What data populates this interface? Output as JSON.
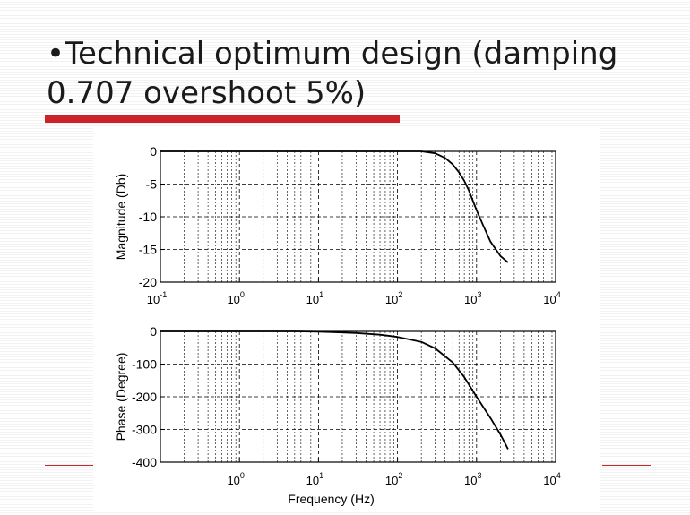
{
  "slide": {
    "title_bullet": "•",
    "title_line1": "Technical optimum design (damping",
    "title_line2": "0.707 overshoot 5%)"
  },
  "colors": {
    "accent": "#cc2229",
    "curve": "#000000",
    "grid": "#000000"
  },
  "chart_data": [
    {
      "type": "line",
      "xscale": "log",
      "xlim": [
        0.1,
        10000
      ],
      "ylim": [
        -20,
        0
      ],
      "xlabel": "",
      "ylabel": "Magnitude (Db)",
      "yticks": [
        0,
        -5,
        -10,
        -15,
        -20
      ],
      "xticks": [
        {
          "mant": "10",
          "exp": "-1"
        },
        {
          "mant": "10",
          "exp": "0"
        },
        {
          "mant": "10",
          "exp": "1"
        },
        {
          "mant": "10",
          "exp": "2"
        },
        {
          "mant": "10",
          "exp": "3"
        },
        {
          "mant": "10",
          "exp": "4"
        }
      ],
      "grid": true,
      "series": [
        {
          "x": [
            0.1,
            1,
            10,
            100,
            200,
            300,
            400,
            500,
            600,
            700,
            800,
            1000,
            1200,
            1500,
            2000,
            2500
          ],
          "y": [
            0,
            0,
            0,
            0,
            0,
            -0.3,
            -1.0,
            -2.0,
            -3.2,
            -4.5,
            -6.0,
            -9.0,
            -11.2,
            -13.8,
            -16.0,
            -17.0
          ]
        }
      ]
    },
    {
      "type": "line",
      "xscale": "log",
      "xlim": [
        0.1,
        10000
      ],
      "ylim": [
        -400,
        0
      ],
      "xlabel": "Frequency (Hz)",
      "ylabel": "Phase (Degree)",
      "yticks": [
        0,
        -100,
        -200,
        -300,
        -400
      ],
      "xticks": [
        {
          "mant": "10",
          "exp": "0"
        },
        {
          "mant": "10",
          "exp": "1"
        },
        {
          "mant": "10",
          "exp": "2"
        },
        {
          "mant": "10",
          "exp": "3"
        },
        {
          "mant": "10",
          "exp": "4"
        }
      ],
      "grid": true,
      "series": [
        {
          "x": [
            0.1,
            1,
            5,
            10,
            30,
            60,
            100,
            200,
            300,
            500,
            700,
            1000,
            1500,
            2000,
            2500
          ],
          "y": [
            0,
            0,
            0,
            -1,
            -5,
            -10,
            -17,
            -32,
            -52,
            -95,
            -140,
            -200,
            -265,
            -315,
            -360
          ]
        }
      ]
    }
  ]
}
